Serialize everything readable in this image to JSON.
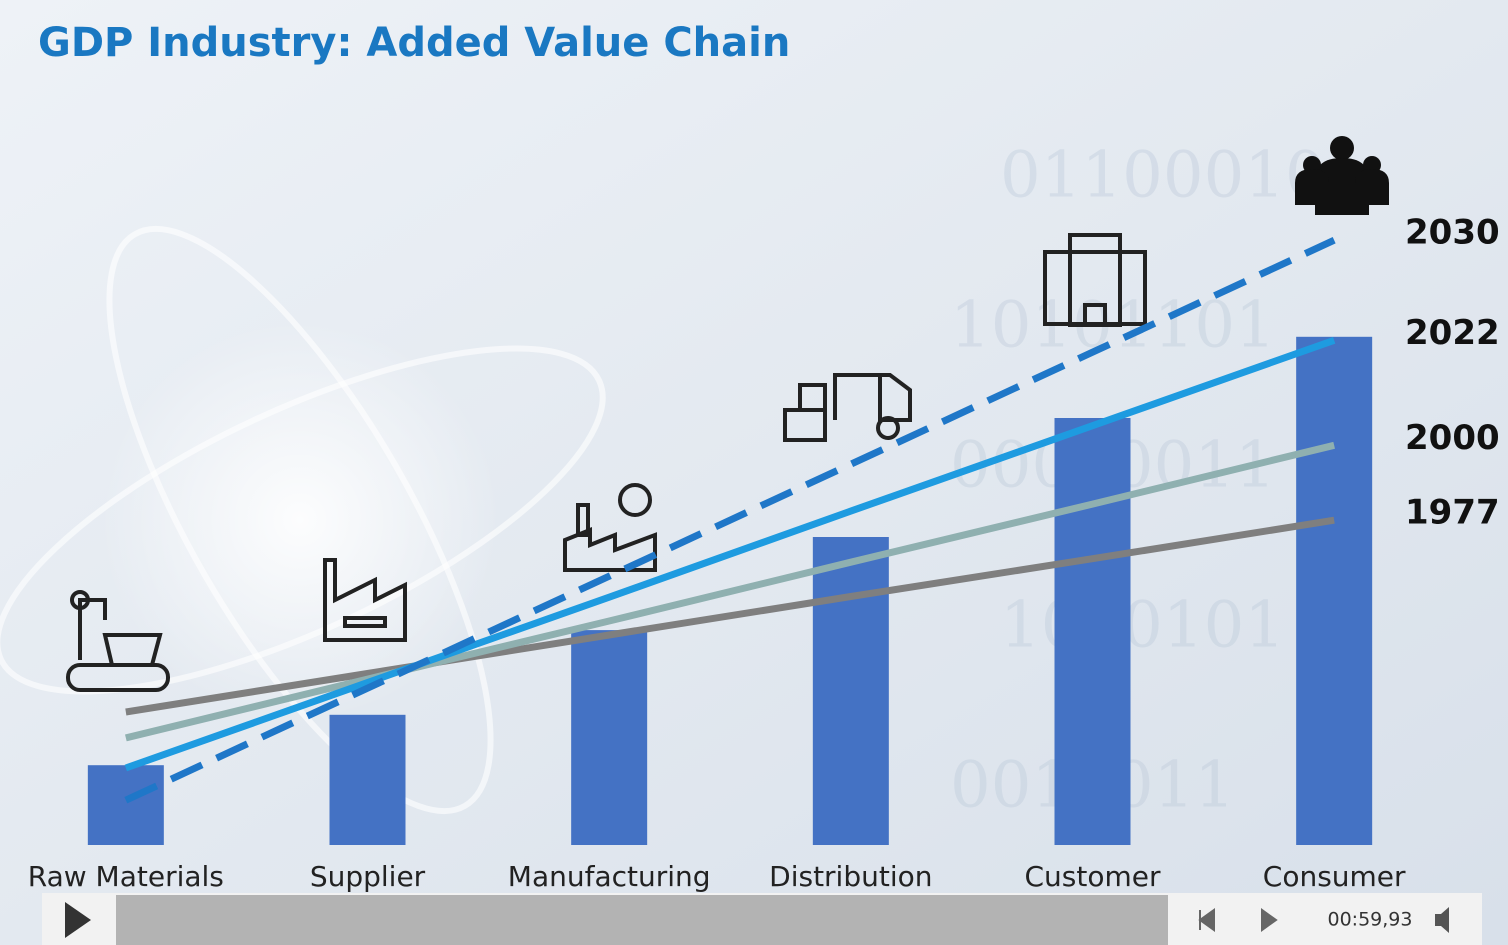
{
  "chart_data": {
    "type": "bar",
    "title": "GDP Industry: Added Value Chain",
    "categories": [
      "Raw Materials",
      "Supplier",
      "Manufacturing",
      "Distribution",
      "Customer",
      "Consumer"
    ],
    "values": [
      11.4,
      18.6,
      30.7,
      44,
      61,
      72.6
    ],
    "color": "#4472c4",
    "ylim": [
      0,
      100
    ],
    "series": [
      {
        "name": "1977",
        "color": "#7f7f7f",
        "dashed": false,
        "values": [
          19,
          24.5,
          30,
          35.5,
          40.9,
          46.4
        ]
      },
      {
        "name": "2000",
        "color": "#8fb0b0",
        "dashed": false,
        "values": [
          15.3,
          23.7,
          32,
          40.4,
          48.7,
          57.1
        ]
      },
      {
        "name": "2022",
        "color": "#1e9be0",
        "dashed": false,
        "values": [
          11,
          23.2,
          35.4,
          47.7,
          59.9,
          72.1
        ]
      },
      {
        "name": "2030",
        "color": "#1f77c8",
        "dashed": true,
        "values": [
          6.4,
          22.4,
          38.4,
          54.4,
          70.4,
          86.4
        ]
      }
    ]
  },
  "player": {
    "time": "00:59,93"
  }
}
